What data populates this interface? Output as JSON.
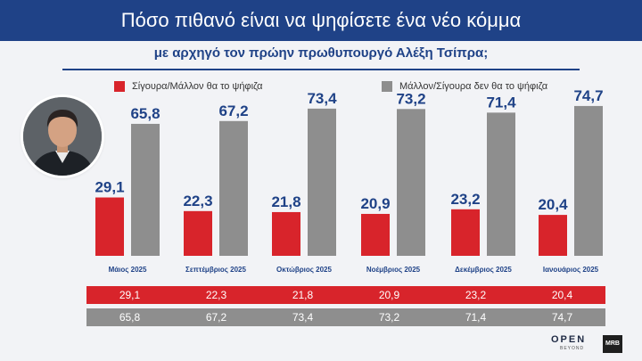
{
  "header": {
    "title": "Πόσο πιθανό είναι να ψηφίσετε ένα νέο κόμμα",
    "subtitle": "με αρχηγό τον πρώην πρωθυπουργό Αλέξη Τσίπρα;"
  },
  "legend": {
    "yes_label": "Σίγουρα/Μάλλον θα το ψήφιζα",
    "no_label": "Μάλλον/Σίγουρα δεν θα το ψήφιζα"
  },
  "colors": {
    "red": "#d8242b",
    "gray": "#8e8e8e",
    "navy": "#1f4287"
  },
  "brand": {
    "open": "OPEN",
    "beyond": "BEYOND",
    "mrb": "MRB"
  },
  "chart_data": {
    "type": "bar",
    "categories": [
      "Μάιος 2025",
      "Σεπτέμβριος 2025",
      "Οκτώβριος 2025",
      "Νοέμβριος 2025",
      "Δεκέμβριος 2025",
      "Ιανουάριος 2025"
    ],
    "series": [
      {
        "name": "Σίγουρα/Μάλλον θα το ψήφιζα",
        "color": "#d8242b",
        "values": [
          29.1,
          22.3,
          21.8,
          20.9,
          23.2,
          20.4
        ]
      },
      {
        "name": "Μάλλον/Σίγουρα δεν θα το ψήφιζα",
        "color": "#8e8e8e",
        "values": [
          65.8,
          67.2,
          73.4,
          73.2,
          71.4,
          74.7
        ]
      }
    ],
    "value_labels": {
      "yes": [
        "29,1",
        "22,3",
        "21,8",
        "20,9",
        "23,2",
        "20,4"
      ],
      "no": [
        "65,8",
        "67,2",
        "73,4",
        "73,2",
        "71,4",
        "74,7"
      ]
    },
    "ylim": [
      0,
      80
    ],
    "grid": false,
    "legend_position": "top"
  }
}
